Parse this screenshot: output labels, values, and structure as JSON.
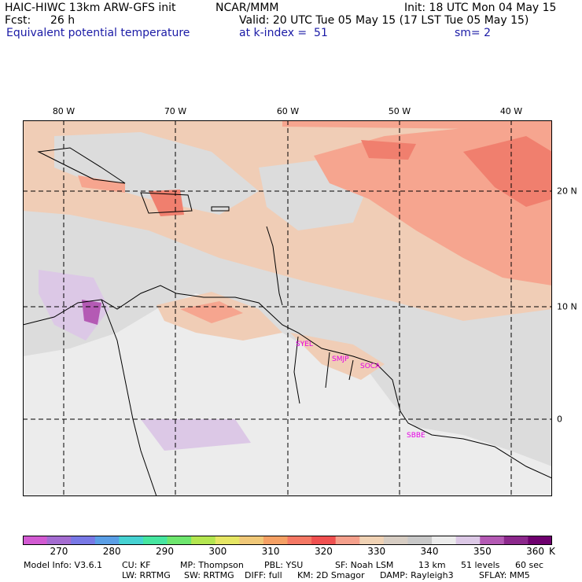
{
  "header": {
    "model_line": "HAIC-HIWC 13km ARW-GFS init",
    "org": "NCAR/MMM",
    "init": "Init: 18 UTC Mon 04 May 15",
    "fcst_label": "Fcst:",
    "fcst_value": "26 h",
    "valid": "Valid: 20 UTC Tue 05 May 15 (17 LST Tue 05 May 15)",
    "field": "Equivalent potential temperature",
    "level": "at k-index =  51",
    "smoothing": "sm= 2"
  },
  "map": {
    "lon_labels": [
      "80 W",
      "70 W",
      "60 W",
      "50 W",
      "40 W"
    ],
    "lat_labels": [
      "20 N",
      "10 N",
      "0"
    ],
    "stations": [
      "SYEL",
      "SMJP",
      "SOCA",
      "SBBE"
    ],
    "colors": {
      "ocean_base": "#dcdcdc",
      "land_base": "#ececec",
      "warm_band": "#f0cdb6",
      "hot_band": "#f6a58f",
      "hottest": "#f07f6e",
      "station_text": "#e600e6"
    }
  },
  "colorbar": {
    "ticks": [
      "270",
      "280",
      "290",
      "300",
      "310",
      "320",
      "330",
      "340",
      "350",
      "360"
    ],
    "unit": "K",
    "colors": [
      "#d25ad2",
      "#a46cd1",
      "#7878e6",
      "#5a9ee6",
      "#46d2d2",
      "#46e6a0",
      "#6ee66e",
      "#b4e650",
      "#e6e664",
      "#f0c878",
      "#f5a064",
      "#f57864",
      "#f05050",
      "#f5a08c",
      "#f0d2b4",
      "#d7cdc3",
      "#c8c8c8",
      "#ececec",
      "#dcc8e6",
      "#b45ab4",
      "#8c288c",
      "#6e006e"
    ]
  },
  "info": {
    "line1": [
      "Model Info: V3.6.1",
      "CU: KF",
      "MP: Thompson",
      "PBL: YSU",
      "SF: Noah LSM",
      "13 km",
      "51 levels",
      "60 sec"
    ],
    "line2": [
      "LW: RRTMG",
      "SW: RRTMG",
      "DIFF: full",
      "KM: 2D Smagor",
      "DAMP: Rayleigh3",
      "SFLAY: MM5"
    ]
  }
}
